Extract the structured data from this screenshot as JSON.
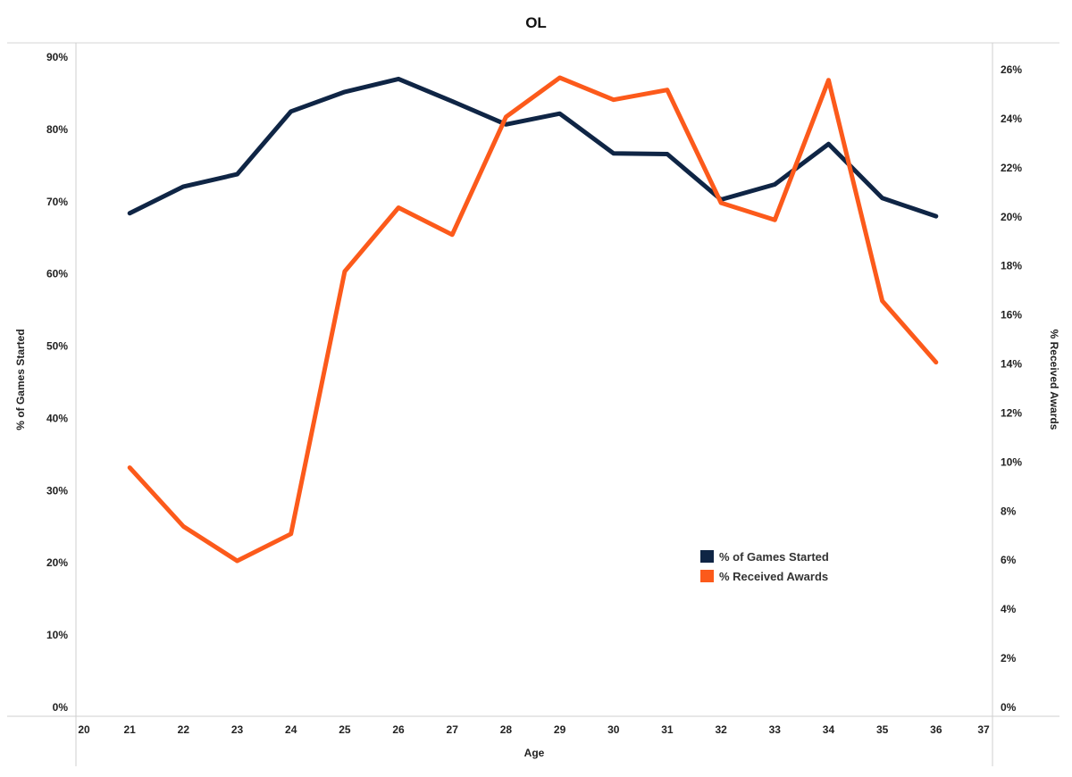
{
  "chart_data": {
    "type": "line",
    "title": "OL",
    "xlabel": "Age",
    "ylabel_left": "% of Games Started",
    "ylabel_right": "% Received Awards",
    "x_ticks": [
      "20",
      "21",
      "22",
      "23",
      "24",
      "25",
      "26",
      "27",
      "28",
      "29",
      "30",
      "31",
      "32",
      "33",
      "34",
      "35",
      "36",
      "37"
    ],
    "xlim": [
      20,
      37
    ],
    "y_left_ticks": [
      "0%",
      "10%",
      "20%",
      "30%",
      "40%",
      "50%",
      "60%",
      "70%",
      "80%",
      "90%"
    ],
    "y_left_lim": [
      0,
      90
    ],
    "y_right_ticks": [
      "0%",
      "2%",
      "4%",
      "6%",
      "8%",
      "10%",
      "12%",
      "14%",
      "16%",
      "18%",
      "20%",
      "22%",
      "24%",
      "26%"
    ],
    "y_right_lim": [
      0,
      26
    ],
    "x": [
      21,
      22,
      23,
      24,
      25,
      26,
      27,
      28,
      29,
      30,
      31,
      32,
      33,
      34,
      35,
      36
    ],
    "series": [
      {
        "name": "% of Games Started",
        "axis": "left",
        "color": "#0f2545",
        "values": [
          69.5,
          73.2,
          74.9,
          83.6,
          86.3,
          88.1,
          85.0,
          81.8,
          83.3,
          77.8,
          77.7,
          71.4,
          73.5,
          79.1,
          71.6,
          69.1
        ]
      },
      {
        "name": "% Received Awards",
        "axis": "right",
        "color": "#fc5a1b",
        "values": [
          10.1,
          7.7,
          6.3,
          7.4,
          18.1,
          20.7,
          19.6,
          24.4,
          26.0,
          25.1,
          25.5,
          20.9,
          20.2,
          25.9,
          16.9,
          14.4
        ]
      }
    ],
    "legend_position": "lower-right",
    "grid": false
  }
}
